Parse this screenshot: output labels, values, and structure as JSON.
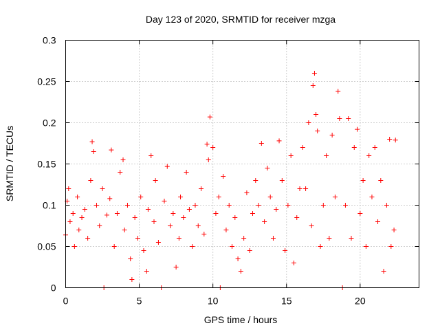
{
  "chart_data": {
    "type": "scatter",
    "title": "Day 123 of 2020, SRMTID for receiver mzga",
    "xlabel": "GPS time / hours",
    "ylabel": "SRMTID / TECUs",
    "xlim": [
      0,
      24
    ],
    "ylim": [
      0,
      0.3
    ],
    "xticks": [
      0,
      5,
      10,
      15,
      20
    ],
    "xtick_labels": [
      "0",
      "5",
      "10",
      "15",
      "20"
    ],
    "yticks": [
      0,
      0.05,
      0.1,
      0.15,
      0.2,
      0.25,
      0.3
    ],
    "ytick_labels": [
      "0",
      "0.05",
      "0.1",
      "0.15",
      "0.2",
      "0.25",
      "0.3"
    ],
    "grid": true,
    "marker": "+",
    "color": "#ff0000",
    "series": [
      {
        "name": "SRMTID",
        "points": [
          [
            0.0,
            0.064
          ],
          [
            0.1,
            0.105
          ],
          [
            0.2,
            0.12
          ],
          [
            0.3,
            0.08
          ],
          [
            0.5,
            0.09
          ],
          [
            0.6,
            0.05
          ],
          [
            0.8,
            0.11
          ],
          [
            0.9,
            0.07
          ],
          [
            1.1,
            0.085
          ],
          [
            1.3,
            0.095
          ],
          [
            1.5,
            0.06
          ],
          [
            1.7,
            0.13
          ],
          [
            1.8,
            0.177
          ],
          [
            1.9,
            0.165
          ],
          [
            2.1,
            0.1
          ],
          [
            2.3,
            0.075
          ],
          [
            2.5,
            0.12
          ],
          [
            2.6,
            0.0
          ],
          [
            2.8,
            0.088
          ],
          [
            3.0,
            0.108
          ],
          [
            3.1,
            0.167
          ],
          [
            3.3,
            0.05
          ],
          [
            3.5,
            0.09
          ],
          [
            3.7,
            0.14
          ],
          [
            3.9,
            0.155
          ],
          [
            4.0,
            0.07
          ],
          [
            4.2,
            0.1
          ],
          [
            4.4,
            0.035
          ],
          [
            4.5,
            0.01
          ],
          [
            4.7,
            0.085
          ],
          [
            4.9,
            0.06
          ],
          [
            5.1,
            0.11
          ],
          [
            5.3,
            0.045
          ],
          [
            5.5,
            0.02
          ],
          [
            5.6,
            0.095
          ],
          [
            5.8,
            0.16
          ],
          [
            6.0,
            0.08
          ],
          [
            6.1,
            0.13
          ],
          [
            6.3,
            0.055
          ],
          [
            6.5,
            0.0
          ],
          [
            6.7,
            0.105
          ],
          [
            6.9,
            0.147
          ],
          [
            7.1,
            0.075
          ],
          [
            7.3,
            0.09
          ],
          [
            7.5,
            0.025
          ],
          [
            7.7,
            0.06
          ],
          [
            7.8,
            0.11
          ],
          [
            8.0,
            0.085
          ],
          [
            8.2,
            0.14
          ],
          [
            8.4,
            0.095
          ],
          [
            8.6,
            0.05
          ],
          [
            8.8,
            0.1
          ],
          [
            9.0,
            0.075
          ],
          [
            9.2,
            0.12
          ],
          [
            9.4,
            0.065
          ],
          [
            9.6,
            0.174
          ],
          [
            9.7,
            0.155
          ],
          [
            9.8,
            0.207
          ],
          [
            10.0,
            0.17
          ],
          [
            10.2,
            0.09
          ],
          [
            10.4,
            0.11
          ],
          [
            10.5,
            0.0
          ],
          [
            10.7,
            0.135
          ],
          [
            10.9,
            0.07
          ],
          [
            11.1,
            0.1
          ],
          [
            11.3,
            0.05
          ],
          [
            11.5,
            0.085
          ],
          [
            11.7,
            0.035
          ],
          [
            11.9,
            0.02
          ],
          [
            12.1,
            0.06
          ],
          [
            12.3,
            0.115
          ],
          [
            12.5,
            0.045
          ],
          [
            12.7,
            0.09
          ],
          [
            12.9,
            0.13
          ],
          [
            13.1,
            0.1
          ],
          [
            13.3,
            0.175
          ],
          [
            13.5,
            0.08
          ],
          [
            13.7,
            0.145
          ],
          [
            13.9,
            0.11
          ],
          [
            14.1,
            0.06
          ],
          [
            14.3,
            0.095
          ],
          [
            14.5,
            0.178
          ],
          [
            14.7,
            0.13
          ],
          [
            14.9,
            0.045
          ],
          [
            15.1,
            0.1
          ],
          [
            15.3,
            0.16
          ],
          [
            15.5,
            0.03
          ],
          [
            15.7,
            0.085
          ],
          [
            15.9,
            0.12
          ],
          [
            16.1,
            0.17
          ],
          [
            16.3,
            0.12
          ],
          [
            16.5,
            0.2
          ],
          [
            16.7,
            0.075
          ],
          [
            16.8,
            0.245
          ],
          [
            16.9,
            0.26
          ],
          [
            17.0,
            0.21
          ],
          [
            17.1,
            0.19
          ],
          [
            17.3,
            0.05
          ],
          [
            17.5,
            0.1
          ],
          [
            17.7,
            0.16
          ],
          [
            17.9,
            0.06
          ],
          [
            18.1,
            0.185
          ],
          [
            18.3,
            0.11
          ],
          [
            18.5,
            0.238
          ],
          [
            18.6,
            0.205
          ],
          [
            18.8,
            0.0
          ],
          [
            19.0,
            0.1
          ],
          [
            19.2,
            0.205
          ],
          [
            19.4,
            0.06
          ],
          [
            19.6,
            0.17
          ],
          [
            19.8,
            0.192
          ],
          [
            20.0,
            0.09
          ],
          [
            20.2,
            0.13
          ],
          [
            20.4,
            0.05
          ],
          [
            20.6,
            0.16
          ],
          [
            20.8,
            0.11
          ],
          [
            21.0,
            0.17
          ],
          [
            21.2,
            0.08
          ],
          [
            21.4,
            0.13
          ],
          [
            21.6,
            0.02
          ],
          [
            21.8,
            0.1
          ],
          [
            22.0,
            0.18
          ],
          [
            22.1,
            0.05
          ],
          [
            22.3,
            0.07
          ],
          [
            22.4,
            0.179
          ]
        ]
      }
    ]
  }
}
